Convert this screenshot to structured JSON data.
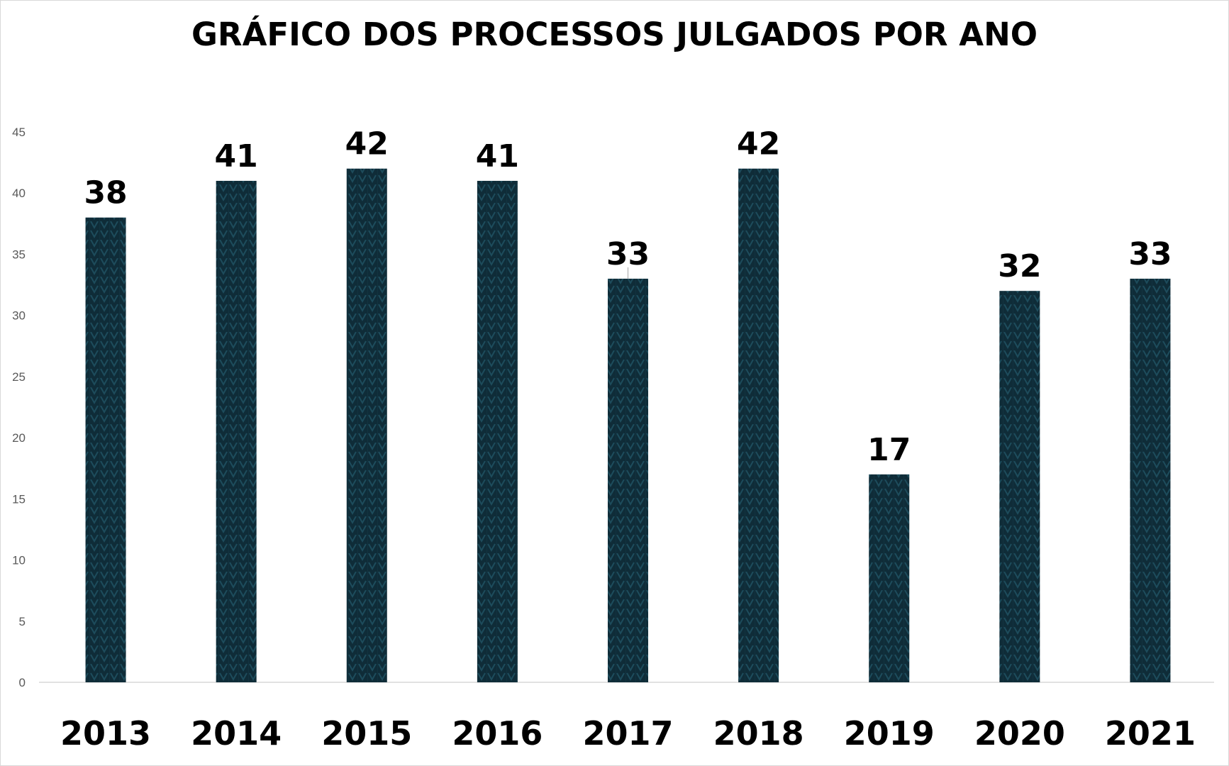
{
  "chart_data": {
    "type": "bar",
    "title": "GRÁFICO DOS PROCESSOS JULGADOS POR ANO",
    "categories": [
      "2013",
      "2014",
      "2015",
      "2016",
      "2017",
      "2018",
      "2019",
      "2020",
      "2021"
    ],
    "values": [
      38,
      41,
      42,
      41,
      33,
      42,
      17,
      32,
      33
    ],
    "data_labels": [
      "38",
      "41",
      "42",
      "41",
      "33",
      "42",
      "17",
      "32",
      "33"
    ],
    "xlabel": "",
    "ylabel": "",
    "ylim": [
      0,
      45
    ],
    "yticks": [
      0,
      5,
      10,
      15,
      20,
      25,
      30,
      35,
      40,
      45
    ],
    "grid": false,
    "legend": "none",
    "bar_color": "#0f2c38",
    "bar_pattern_color": "#1d4c5c"
  }
}
